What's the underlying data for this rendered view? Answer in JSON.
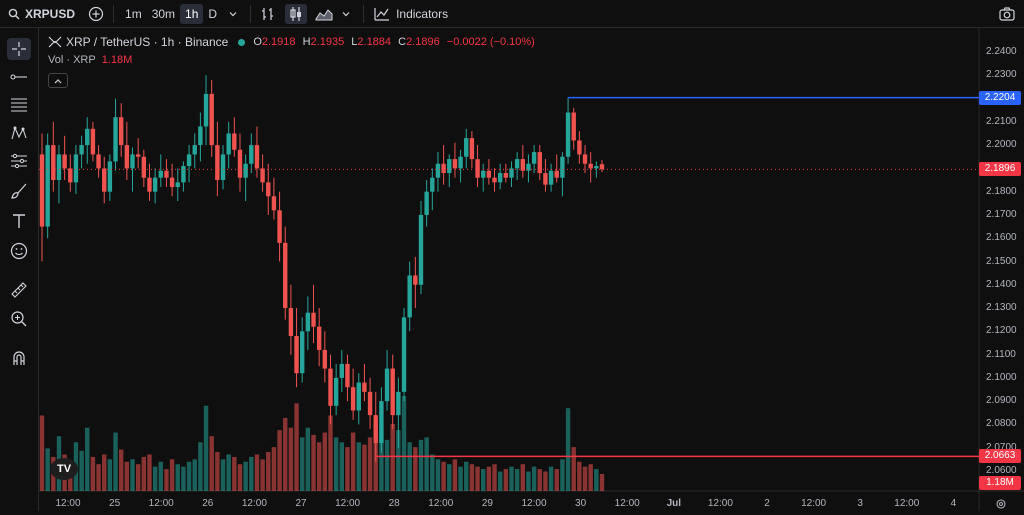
{
  "toolbar": {
    "symbol": "XRPUSD",
    "intervals": [
      "1m",
      "30m",
      "1h",
      "D"
    ],
    "active_interval": "1h",
    "indicators_label": "Indicators"
  },
  "legend": {
    "title": "XRP / TetherUS · 1h · Binance",
    "o_label": "O",
    "o": "2.1918",
    "h_label": "H",
    "h": "2.1935",
    "l_label": "L",
    "l": "2.1884",
    "c_label": "C",
    "c": "2.1896",
    "change": "−0.0022 (−0.10%)"
  },
  "volume": {
    "label": "Vol · XRP",
    "value": "1.18M"
  },
  "colors": {
    "up": "#26a69a",
    "down": "#ef5350",
    "blue_line": "#2962ff",
    "red_line": "#f23645"
  },
  "price_axis": {
    "ticks": [
      "2.2400",
      "2.2300",
      "2.2200",
      "2.2100",
      "2.2000",
      "2.1900",
      "2.1800",
      "2.1700",
      "2.1600",
      "2.1500",
      "2.1400",
      "2.1300",
      "2.1200",
      "2.1100",
      "2.1000",
      "2.0900",
      "2.0800",
      "2.0700",
      "2.0600"
    ],
    "current_price": "2.1896",
    "blue_level": "2.2204",
    "red_level": "2.0663",
    "volume_value": "1.18M"
  },
  "time_axis": [
    "12:00",
    "25",
    "12:00",
    "26",
    "12:00",
    "27",
    "12:00",
    "28",
    "12:00",
    "29",
    "12:00",
    "30",
    "12:00",
    "Jul",
    "12:00",
    "2",
    "12:00",
    "3",
    "12:00",
    "4"
  ],
  "chart_data": {
    "type": "candlestick",
    "symbol": "XRP / TetherUS",
    "interval": "1h",
    "ylim": [
      2.055,
      2.245
    ],
    "horizontal_lines": [
      2.2204,
      2.0663
    ],
    "series": [
      {
        "o": 2.196,
        "h": 2.205,
        "l": 2.15,
        "c": 2.165
      },
      {
        "o": 2.165,
        "h": 2.205,
        "l": 2.16,
        "c": 2.2
      },
      {
        "o": 2.2,
        "h": 2.21,
        "l": 2.18,
        "c": 2.185
      },
      {
        "o": 2.185,
        "h": 2.2,
        "l": 2.175,
        "c": 2.196
      },
      {
        "o": 2.196,
        "h": 2.204,
        "l": 2.185,
        "c": 2.19
      },
      {
        "o": 2.19,
        "h": 2.196,
        "l": 2.18,
        "c": 2.184
      },
      {
        "o": 2.184,
        "h": 2.2,
        "l": 2.179,
        "c": 2.196
      },
      {
        "o": 2.196,
        "h": 2.204,
        "l": 2.19,
        "c": 2.2
      },
      {
        "o": 2.2,
        "h": 2.212,
        "l": 2.192,
        "c": 2.207
      },
      {
        "o": 2.207,
        "h": 2.21,
        "l": 2.193,
        "c": 2.196
      },
      {
        "o": 2.196,
        "h": 2.2,
        "l": 2.186,
        "c": 2.19
      },
      {
        "o": 2.19,
        "h": 2.195,
        "l": 2.175,
        "c": 2.18
      },
      {
        "o": 2.18,
        "h": 2.196,
        "l": 2.176,
        "c": 2.193
      },
      {
        "o": 2.193,
        "h": 2.22,
        "l": 2.189,
        "c": 2.212
      },
      {
        "o": 2.212,
        "h": 2.218,
        "l": 2.195,
        "c": 2.2
      },
      {
        "o": 2.2,
        "h": 2.21,
        "l": 2.185,
        "c": 2.19
      },
      {
        "o": 2.19,
        "h": 2.199,
        "l": 2.18,
        "c": 2.196
      },
      {
        "o": 2.196,
        "h": 2.203,
        "l": 2.19,
        "c": 2.195
      },
      {
        "o": 2.195,
        "h": 2.198,
        "l": 2.182,
        "c": 2.186
      },
      {
        "o": 2.186,
        "h": 2.192,
        "l": 2.176,
        "c": 2.18
      },
      {
        "o": 2.18,
        "h": 2.19,
        "l": 2.175,
        "c": 2.186
      },
      {
        "o": 2.186,
        "h": 2.196,
        "l": 2.182,
        "c": 2.189
      },
      {
        "o": 2.189,
        "h": 2.194,
        "l": 2.182,
        "c": 2.186
      },
      {
        "o": 2.186,
        "h": 2.192,
        "l": 2.178,
        "c": 2.182
      },
      {
        "o": 2.182,
        "h": 2.19,
        "l": 2.176,
        "c": 2.184
      },
      {
        "o": 2.184,
        "h": 2.193,
        "l": 2.18,
        "c": 2.191
      },
      {
        "o": 2.191,
        "h": 2.2,
        "l": 2.184,
        "c": 2.196
      },
      {
        "o": 2.196,
        "h": 2.205,
        "l": 2.19,
        "c": 2.2
      },
      {
        "o": 2.2,
        "h": 2.214,
        "l": 2.193,
        "c": 2.208
      },
      {
        "o": 2.208,
        "h": 2.23,
        "l": 2.2,
        "c": 2.222
      },
      {
        "o": 2.222,
        "h": 2.228,
        "l": 2.195,
        "c": 2.2
      },
      {
        "o": 2.2,
        "h": 2.21,
        "l": 2.178,
        "c": 2.185
      },
      {
        "o": 2.185,
        "h": 2.2,
        "l": 2.181,
        "c": 2.196
      },
      {
        "o": 2.196,
        "h": 2.21,
        "l": 2.19,
        "c": 2.205
      },
      {
        "o": 2.205,
        "h": 2.212,
        "l": 2.195,
        "c": 2.198
      },
      {
        "o": 2.198,
        "h": 2.205,
        "l": 2.18,
        "c": 2.186
      },
      {
        "o": 2.186,
        "h": 2.196,
        "l": 2.176,
        "c": 2.192
      },
      {
        "o": 2.192,
        "h": 2.205,
        "l": 2.188,
        "c": 2.2
      },
      {
        "o": 2.2,
        "h": 2.208,
        "l": 2.186,
        "c": 2.19
      },
      {
        "o": 2.19,
        "h": 2.196,
        "l": 2.18,
        "c": 2.184
      },
      {
        "o": 2.184,
        "h": 2.192,
        "l": 2.17,
        "c": 2.178
      },
      {
        "o": 2.178,
        "h": 2.186,
        "l": 2.168,
        "c": 2.172
      },
      {
        "o": 2.172,
        "h": 2.18,
        "l": 2.15,
        "c": 2.158
      },
      {
        "o": 2.158,
        "h": 2.165,
        "l": 2.125,
        "c": 2.13
      },
      {
        "o": 2.13,
        "h": 2.14,
        "l": 2.11,
        "c": 2.118
      },
      {
        "o": 2.118,
        "h": 2.13,
        "l": 2.096,
        "c": 2.102
      },
      {
        "o": 2.102,
        "h": 2.126,
        "l": 2.098,
        "c": 2.12
      },
      {
        "o": 2.12,
        "h": 2.135,
        "l": 2.112,
        "c": 2.128
      },
      {
        "o": 2.128,
        "h": 2.14,
        "l": 2.115,
        "c": 2.122
      },
      {
        "o": 2.122,
        "h": 2.13,
        "l": 2.105,
        "c": 2.112
      },
      {
        "o": 2.112,
        "h": 2.12,
        "l": 2.098,
        "c": 2.104
      },
      {
        "o": 2.104,
        "h": 2.11,
        "l": 2.08,
        "c": 2.088
      },
      {
        "o": 2.088,
        "h": 2.106,
        "l": 2.084,
        "c": 2.1
      },
      {
        "o": 2.1,
        "h": 2.112,
        "l": 2.094,
        "c": 2.106
      },
      {
        "o": 2.106,
        "h": 2.11,
        "l": 2.09,
        "c": 2.096
      },
      {
        "o": 2.096,
        "h": 2.104,
        "l": 2.082,
        "c": 2.086
      },
      {
        "o": 2.086,
        "h": 2.102,
        "l": 2.08,
        "c": 2.098
      },
      {
        "o": 2.098,
        "h": 2.106,
        "l": 2.09,
        "c": 2.094
      },
      {
        "o": 2.094,
        "h": 2.1,
        "l": 2.078,
        "c": 2.084
      },
      {
        "o": 2.084,
        "h": 2.094,
        "l": 2.064,
        "c": 2.072
      },
      {
        "o": 2.072,
        "h": 2.096,
        "l": 2.068,
        "c": 2.09
      },
      {
        "o": 2.09,
        "h": 2.112,
        "l": 2.086,
        "c": 2.104
      },
      {
        "o": 2.104,
        "h": 2.11,
        "l": 2.078,
        "c": 2.084
      },
      {
        "o": 2.084,
        "h": 2.1,
        "l": 2.07,
        "c": 2.094
      },
      {
        "o": 2.094,
        "h": 2.13,
        "l": 2.09,
        "c": 2.126
      },
      {
        "o": 2.126,
        "h": 2.15,
        "l": 2.12,
        "c": 2.144
      },
      {
        "o": 2.144,
        "h": 2.152,
        "l": 2.13,
        "c": 2.14
      },
      {
        "o": 2.14,
        "h": 2.176,
        "l": 2.136,
        "c": 2.17
      },
      {
        "o": 2.17,
        "h": 2.185,
        "l": 2.165,
        "c": 2.18
      },
      {
        "o": 2.18,
        "h": 2.19,
        "l": 2.172,
        "c": 2.186
      },
      {
        "o": 2.186,
        "h": 2.197,
        "l": 2.18,
        "c": 2.192
      },
      {
        "o": 2.192,
        "h": 2.2,
        "l": 2.183,
        "c": 2.188
      },
      {
        "o": 2.188,
        "h": 2.196,
        "l": 2.182,
        "c": 2.194
      },
      {
        "o": 2.194,
        "h": 2.201,
        "l": 2.186,
        "c": 2.19
      },
      {
        "o": 2.19,
        "h": 2.198,
        "l": 2.184,
        "c": 2.195
      },
      {
        "o": 2.195,
        "h": 2.207,
        "l": 2.19,
        "c": 2.203
      },
      {
        "o": 2.203,
        "h": 2.206,
        "l": 2.19,
        "c": 2.194
      },
      {
        "o": 2.194,
        "h": 2.2,
        "l": 2.182,
        "c": 2.186
      },
      {
        "o": 2.186,
        "h": 2.192,
        "l": 2.18,
        "c": 2.189
      },
      {
        "o": 2.189,
        "h": 2.194,
        "l": 2.183,
        "c": 2.186
      },
      {
        "o": 2.186,
        "h": 2.19,
        "l": 2.18,
        "c": 2.184
      },
      {
        "o": 2.184,
        "h": 2.192,
        "l": 2.181,
        "c": 2.188
      },
      {
        "o": 2.188,
        "h": 2.192,
        "l": 2.184,
        "c": 2.186
      },
      {
        "o": 2.186,
        "h": 2.193,
        "l": 2.182,
        "c": 2.19
      },
      {
        "o": 2.19,
        "h": 2.197,
        "l": 2.185,
        "c": 2.194
      },
      {
        "o": 2.194,
        "h": 2.2,
        "l": 2.186,
        "c": 2.189
      },
      {
        "o": 2.189,
        "h": 2.196,
        "l": 2.184,
        "c": 2.192
      },
      {
        "o": 2.192,
        "h": 2.2,
        "l": 2.188,
        "c": 2.197
      },
      {
        "o": 2.197,
        "h": 2.2,
        "l": 2.185,
        "c": 2.188
      },
      {
        "o": 2.188,
        "h": 2.194,
        "l": 2.18,
        "c": 2.183
      },
      {
        "o": 2.183,
        "h": 2.192,
        "l": 2.18,
        "c": 2.189
      },
      {
        "o": 2.189,
        "h": 2.196,
        "l": 2.184,
        "c": 2.186
      },
      {
        "o": 2.186,
        "h": 2.197,
        "l": 2.178,
        "c": 2.195
      },
      {
        "o": 2.195,
        "h": 2.2204,
        "l": 2.192,
        "c": 2.214
      },
      {
        "o": 2.214,
        "h": 2.216,
        "l": 2.198,
        "c": 2.202
      },
      {
        "o": 2.202,
        "h": 2.206,
        "l": 2.192,
        "c": 2.196
      },
      {
        "o": 2.196,
        "h": 2.2,
        "l": 2.188,
        "c": 2.192
      },
      {
        "o": 2.192,
        "h": 2.197,
        "l": 2.184,
        "c": 2.19
      },
      {
        "o": 2.19,
        "h": 2.193,
        "l": 2.186,
        "c": 2.191
      },
      {
        "o": 2.1918,
        "h": 2.1935,
        "l": 2.1884,
        "c": 2.1896
      }
    ],
    "volume": [
      0.62,
      0.35,
      0.28,
      0.45,
      0.3,
      0.25,
      0.4,
      0.33,
      0.52,
      0.28,
      0.22,
      0.3,
      0.26,
      0.48,
      0.34,
      0.24,
      0.26,
      0.22,
      0.28,
      0.3,
      0.2,
      0.24,
      0.18,
      0.26,
      0.22,
      0.2,
      0.24,
      0.26,
      0.4,
      0.7,
      0.45,
      0.32,
      0.26,
      0.3,
      0.28,
      0.22,
      0.24,
      0.28,
      0.3,
      0.26,
      0.32,
      0.36,
      0.5,
      0.6,
      0.52,
      0.72,
      0.44,
      0.52,
      0.46,
      0.4,
      0.48,
      0.62,
      0.44,
      0.4,
      0.36,
      0.48,
      0.4,
      0.38,
      0.44,
      0.58,
      0.48,
      0.42,
      0.55,
      0.5,
      0.78,
      0.4,
      0.36,
      0.42,
      0.44,
      0.3,
      0.26,
      0.24,
      0.22,
      0.26,
      0.2,
      0.24,
      0.22,
      0.2,
      0.18,
      0.2,
      0.22,
      0.16,
      0.18,
      0.2,
      0.18,
      0.22,
      0.16,
      0.2,
      0.18,
      0.16,
      0.2,
      0.18,
      0.26,
      0.68,
      0.36,
      0.24,
      0.2,
      0.22,
      0.18,
      0.14
    ]
  }
}
